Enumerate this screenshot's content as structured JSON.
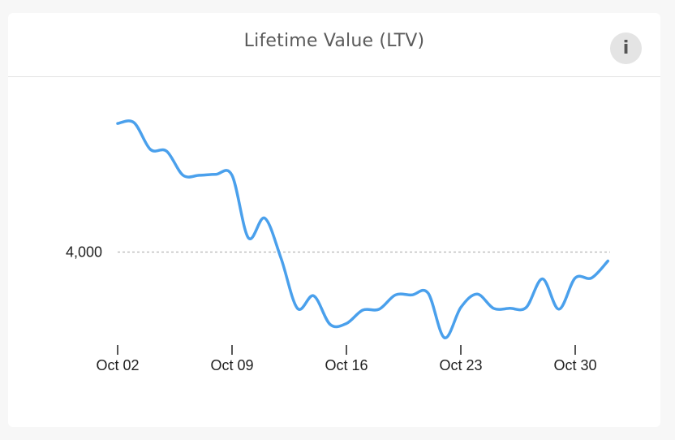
{
  "card": {
    "title": "Lifetime Value (LTV)",
    "info_label": "i"
  },
  "colors": {
    "line": "#4aa0ec",
    "reference_line": "#b5b5b5",
    "background": "#ffffff"
  },
  "chart_data": {
    "type": "line",
    "title": "Lifetime Value (LTV)",
    "xlabel": "",
    "ylabel": "",
    "reference_line": {
      "value": 4000,
      "label": "4,000",
      "style": "dashed"
    },
    "x_ticks": [
      "Oct 02",
      "Oct 09",
      "Oct 16",
      "Oct 23",
      "Oct 30"
    ],
    "ylim": [
      2750,
      5750
    ],
    "grid": false,
    "series": [
      {
        "name": "",
        "x": [
          "Oct 02",
          "Oct 03",
          "Oct 04",
          "Oct 05",
          "Oct 06",
          "Oct 07",
          "Oct 08",
          "Oct 09",
          "Oct 10",
          "Oct 11",
          "Oct 12",
          "Oct 13",
          "Oct 14",
          "Oct 15",
          "Oct 16",
          "Oct 17",
          "Oct 18",
          "Oct 19",
          "Oct 20",
          "Oct 21",
          "Oct 22",
          "Oct 23",
          "Oct 24",
          "Oct 25",
          "Oct 26",
          "Oct 27",
          "Oct 28",
          "Oct 29",
          "Oct 30",
          "Oct 31",
          "Nov 01"
        ],
        "values": [
          5440,
          5450,
          5150,
          5130,
          4860,
          4860,
          4870,
          4860,
          4160,
          4380,
          3930,
          3370,
          3510,
          3190,
          3200,
          3350,
          3360,
          3520,
          3520,
          3540,
          3040,
          3380,
          3530,
          3370,
          3370,
          3380,
          3700,
          3360,
          3710,
          3710,
          3900
        ]
      }
    ]
  }
}
